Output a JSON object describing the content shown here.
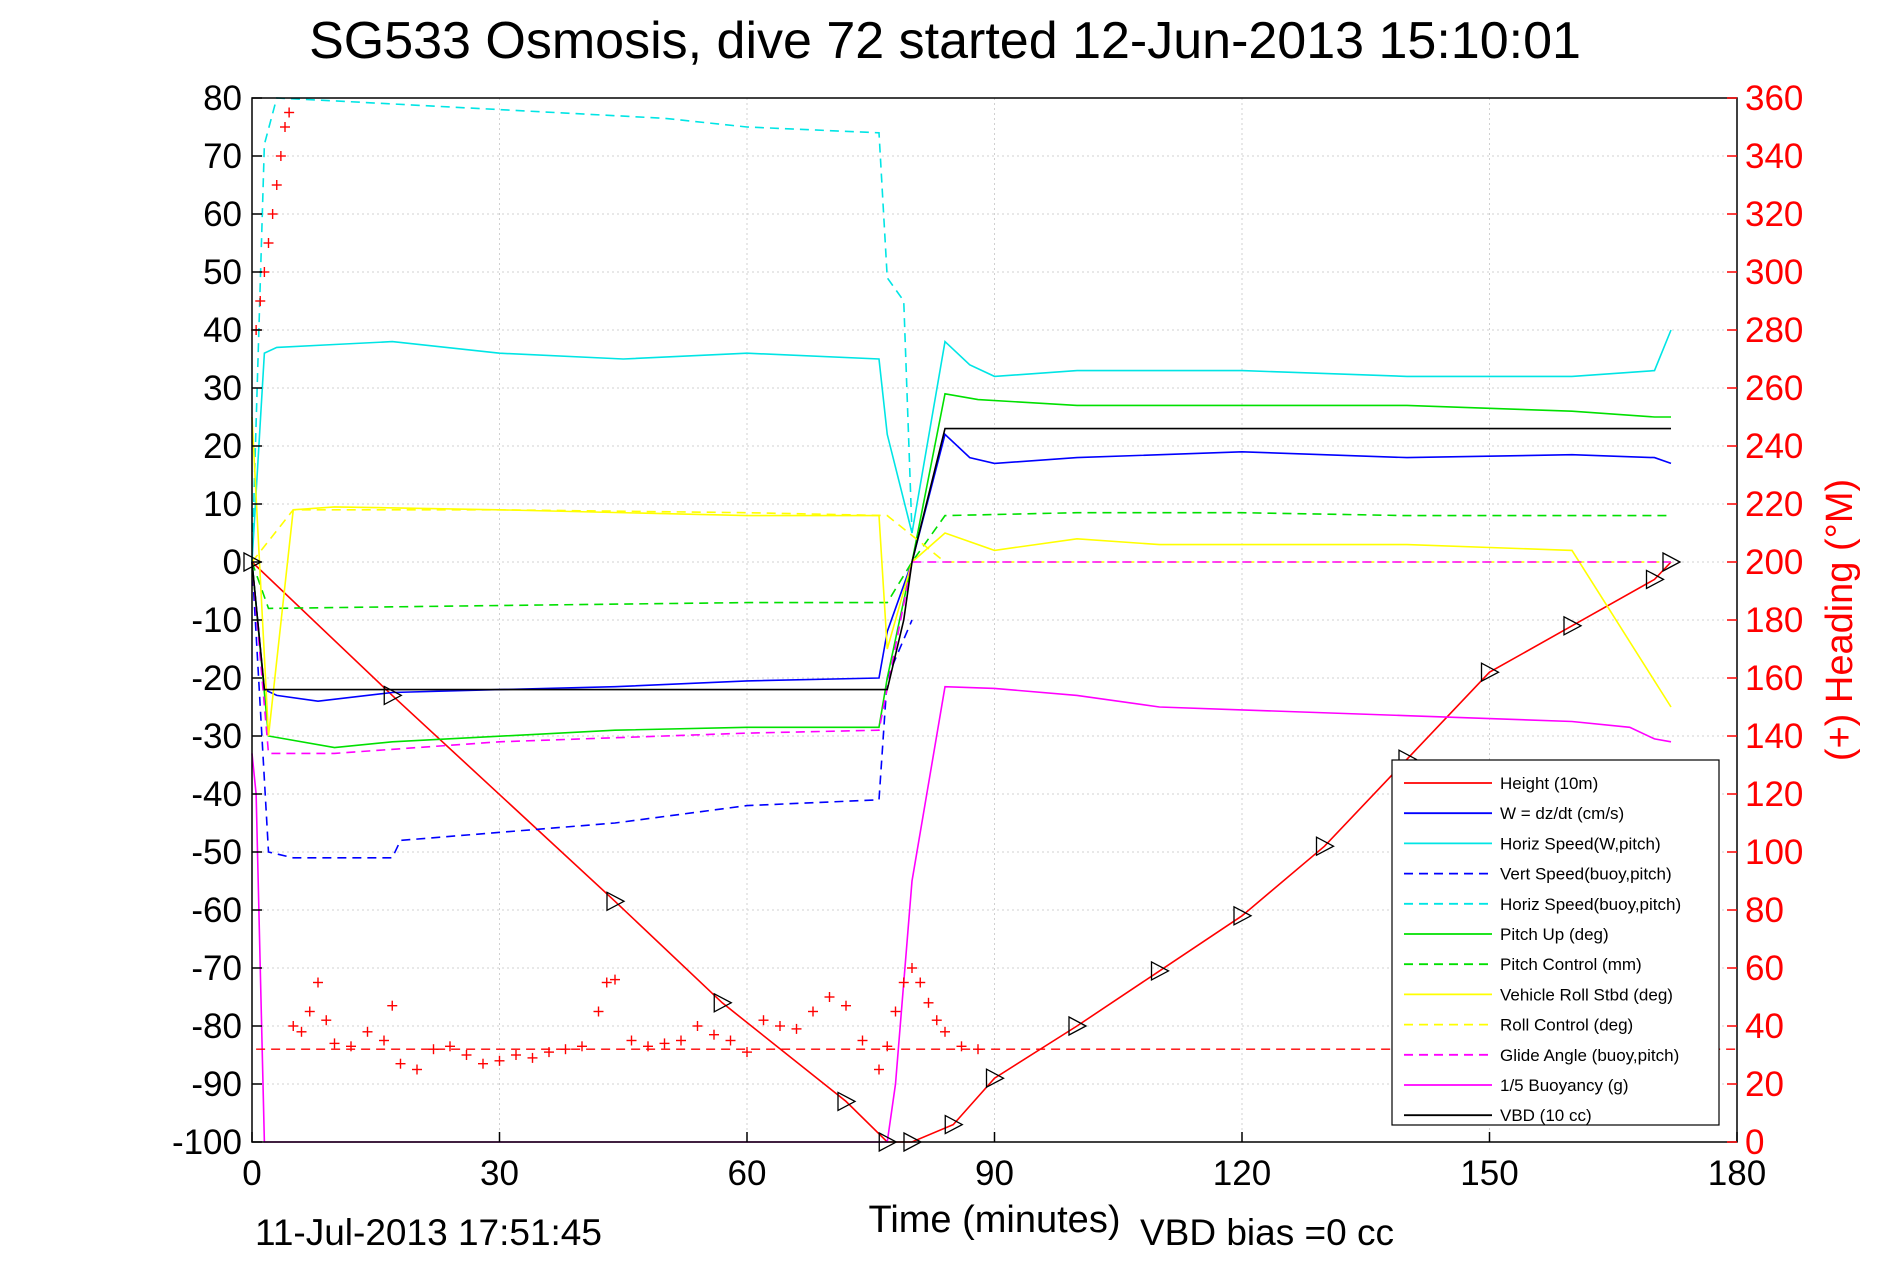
{
  "chart_data": {
    "type": "line",
    "title": "SG533 Osmosis, dive 72 started 12-Jun-2013 15:10:01",
    "xlabel": "Time (minutes)",
    "ylabel_right": "(+) Heading (°M)",
    "footer_left": "11-Jul-2013 17:51:45",
    "footer_right": "VBD bias =0 cc",
    "xlim": [
      0,
      180
    ],
    "ylim": [
      -100,
      80
    ],
    "ylim_right": [
      0,
      360
    ],
    "x_ticks": [
      "0",
      "30",
      "60",
      "90",
      "120",
      "150",
      "180"
    ],
    "y_ticks": [
      "-100",
      "-90",
      "-80",
      "-70",
      "-60",
      "-50",
      "-40",
      "-30",
      "-20",
      "-10",
      "0",
      "10",
      "20",
      "30",
      "40",
      "50",
      "60",
      "70",
      "80"
    ],
    "y_ticks_right": [
      "0",
      "20",
      "40",
      "60",
      "80",
      "100",
      "120",
      "140",
      "160",
      "180",
      "200",
      "220",
      "240",
      "260",
      "280",
      "300",
      "320",
      "340",
      "360"
    ],
    "grid": true,
    "legend_position": "bottom-right",
    "series": [
      {
        "name": "Height (10m)",
        "color": "#ff0000",
        "style": "solid",
        "x": [
          0,
          17,
          44,
          57,
          72,
          77,
          80,
          85,
          90,
          100,
          110,
          120,
          130,
          140,
          150,
          160,
          170,
          172
        ],
        "y": [
          0,
          -23,
          -58.5,
          -76,
          -93,
          -100,
          -100,
          -97,
          -89,
          -80,
          -70.5,
          -61,
          -49,
          -34,
          -19,
          -11,
          -3,
          0
        ]
      },
      {
        "name": "W = dz/dt (cm/s)",
        "color": "#0000ff",
        "style": "solid",
        "x": [
          0,
          1.5,
          3,
          8,
          17,
          30,
          44,
          60,
          76,
          77,
          80,
          84,
          87,
          90,
          100,
          120,
          140,
          160,
          170,
          172
        ],
        "y": [
          0,
          -22,
          -23,
          -24,
          -22.5,
          -22,
          -21.5,
          -20.5,
          -20,
          -12,
          0,
          22,
          18,
          17,
          18,
          19,
          18,
          18.5,
          18,
          17
        ]
      },
      {
        "name": "Horiz Speed(W,pitch)",
        "color": "#00e5e5",
        "style": "solid",
        "x": [
          0,
          1.5,
          3,
          10,
          17,
          30,
          45,
          60,
          76,
          77,
          80,
          84,
          87,
          90,
          100,
          120,
          140,
          160,
          170,
          172
        ],
        "y": [
          0,
          36,
          37,
          37.5,
          38,
          36,
          35,
          36,
          35,
          22,
          5,
          38,
          34,
          32,
          33,
          33,
          32,
          32,
          33,
          40
        ]
      },
      {
        "name": "Vert Speed(buoy,pitch)",
        "color": "#0000ff",
        "style": "dashed",
        "x": [
          0,
          2,
          5,
          17,
          18,
          44,
          60,
          76,
          77,
          80
        ],
        "y": [
          0,
          -50,
          -51,
          -51,
          -48,
          -45,
          -42,
          -41,
          -20,
          -10
        ]
      },
      {
        "name": "Horiz Speed(buoy,pitch)",
        "color": "#00e5e5",
        "style": "dashed",
        "x": [
          0,
          1.5,
          3,
          10,
          30,
          50,
          60,
          76,
          77,
          79,
          80
        ],
        "y": [
          0,
          72,
          80,
          79.5,
          78,
          76.5,
          75,
          74,
          49,
          45,
          5
        ]
      },
      {
        "name": "Pitch Up (deg)",
        "color": "#00e000",
        "style": "solid",
        "x": [
          0,
          2,
          10,
          17,
          44,
          60,
          76,
          77,
          80,
          84,
          88,
          100,
          120,
          140,
          160,
          170,
          172
        ],
        "y": [
          0,
          -30,
          -32,
          -31,
          -29,
          -28.5,
          -28.5,
          -20,
          0,
          29,
          28,
          27,
          27,
          27,
          26,
          25,
          25
        ]
      },
      {
        "name": "Pitch Control (mm)",
        "color": "#00e000",
        "style": "dashed",
        "x": [
          0,
          2,
          30,
          60,
          77,
          80,
          84,
          100,
          120,
          140,
          160,
          172
        ],
        "y": [
          0,
          -8,
          -7.5,
          -7,
          -7,
          0,
          8,
          8.5,
          8.5,
          8,
          8,
          8
        ]
      },
      {
        "name": "Vehicle Roll Stbd (deg)",
        "color": "#ffff00",
        "style": "solid",
        "x": [
          0,
          2,
          5,
          10,
          30,
          60,
          76,
          77,
          80,
          84,
          90,
          100,
          110,
          120,
          140,
          160,
          172
        ],
        "y": [
          25,
          -30,
          9,
          9.5,
          9,
          8,
          8,
          -15,
          0,
          5,
          2,
          4,
          3,
          3,
          3,
          2,
          -25
        ]
      },
      {
        "name": "Roll Control (deg)",
        "color": "#ffff00",
        "style": "dashed",
        "x": [
          0,
          5,
          10,
          30,
          60,
          77,
          84,
          100,
          120,
          140,
          160,
          172
        ],
        "y": [
          0,
          9,
          9,
          9,
          8.5,
          8,
          0,
          0,
          0,
          0,
          0,
          0
        ]
      },
      {
        "name": "Glide Angle (buoy,pitch)",
        "color": "#ff00ff",
        "style": "dashed",
        "x": [
          0,
          2,
          10,
          30,
          60,
          76,
          80,
          84,
          100,
          120,
          140,
          160,
          172
        ],
        "y": [
          0,
          -33,
          -33,
          -31,
          -29.5,
          -29,
          0,
          0,
          0,
          0,
          0,
          0,
          0
        ]
      },
      {
        "name": "1/5 Buoyancy (g)",
        "color": "#ff00ff",
        "style": "solid",
        "x": [
          0,
          0.5,
          1.5,
          77,
          78,
          80,
          84,
          90,
          100,
          110,
          120,
          140,
          160,
          167,
          170,
          172
        ],
        "y": [
          -33,
          -40,
          -100,
          -100,
          -90,
          -55,
          -21.5,
          -21.8,
          -23,
          -25,
          -25.5,
          -26.5,
          -27.5,
          -28.5,
          -30.5,
          -31
        ]
      },
      {
        "name": "VBD (10 cc)",
        "color": "#000000",
        "style": "solid",
        "x": [
          0,
          1.5,
          17,
          40,
          60,
          77,
          79,
          80,
          84,
          88,
          100,
          130,
          160,
          172
        ],
        "y": [
          0,
          -22,
          -22,
          -22,
          -22,
          -22,
          -10,
          0,
          23,
          23,
          23,
          23,
          23,
          23
        ]
      }
    ],
    "heading_series": {
      "name": "(+) Heading",
      "color": "#ff0000",
      "x": [
        0.5,
        1,
        1.5,
        2,
        2.5,
        3,
        3.5,
        4,
        4.5,
        5,
        6,
        7,
        8,
        9,
        10,
        12,
        14,
        16,
        17,
        18,
        20,
        22,
        24,
        26,
        28,
        30,
        32,
        34,
        36,
        38,
        40,
        42,
        43,
        44,
        46,
        48,
        50,
        52,
        54,
        56,
        58,
        60,
        62,
        64,
        66,
        68,
        70,
        72,
        74,
        76,
        77,
        78,
        79,
        80,
        81,
        82,
        83,
        84,
        86,
        88
      ],
      "y": [
        280,
        290,
        300,
        310,
        320,
        330,
        340,
        350,
        355,
        40,
        38,
        45,
        55,
        42,
        34,
        33,
        38,
        35,
        47,
        27,
        25,
        32,
        33,
        30,
        27,
        28,
        30,
        29,
        31,
        32,
        33,
        45,
        55,
        56,
        35,
        33,
        34,
        35,
        40,
        37,
        35,
        31,
        42,
        40,
        39,
        45,
        50,
        47,
        35,
        25,
        33,
        45,
        55,
        60,
        55,
        48,
        42,
        38,
        33,
        32
      ],
      "reference_heading": 32
    }
  },
  "legend_title_none": ""
}
